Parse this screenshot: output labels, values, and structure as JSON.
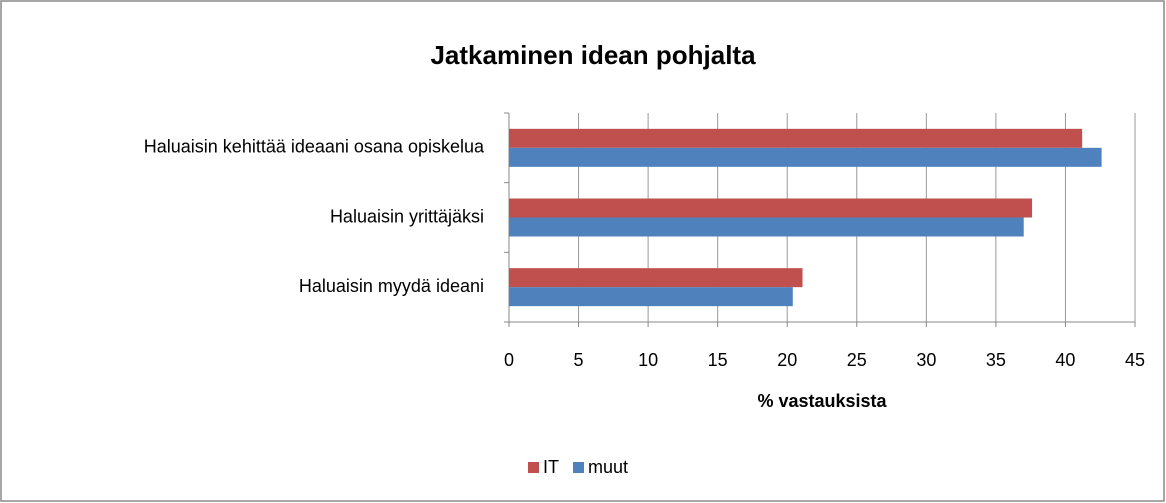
{
  "chart_data": {
    "type": "bar",
    "orientation": "horizontal",
    "title": "Jatkaminen idean pohjalta",
    "x_label": "% vastauksista",
    "categories": [
      "Haluaisin kehittää ideaani osana opiskelua",
      "Haluaisin yrittäjäksi",
      "Haluaisin myydä ideani"
    ],
    "series": [
      {
        "name": "IT",
        "color": "#c0504d",
        "values": [
          41.2,
          37.6,
          21.1
        ]
      },
      {
        "name": "muut",
        "color": "#4f81bd",
        "values": [
          42.6,
          37.0,
          20.4
        ]
      }
    ],
    "xlim": [
      0,
      45
    ],
    "xticks": [
      0,
      5,
      10,
      15,
      20,
      25,
      30,
      35,
      40,
      45
    ],
    "grid": true,
    "legend": "bottom"
  }
}
